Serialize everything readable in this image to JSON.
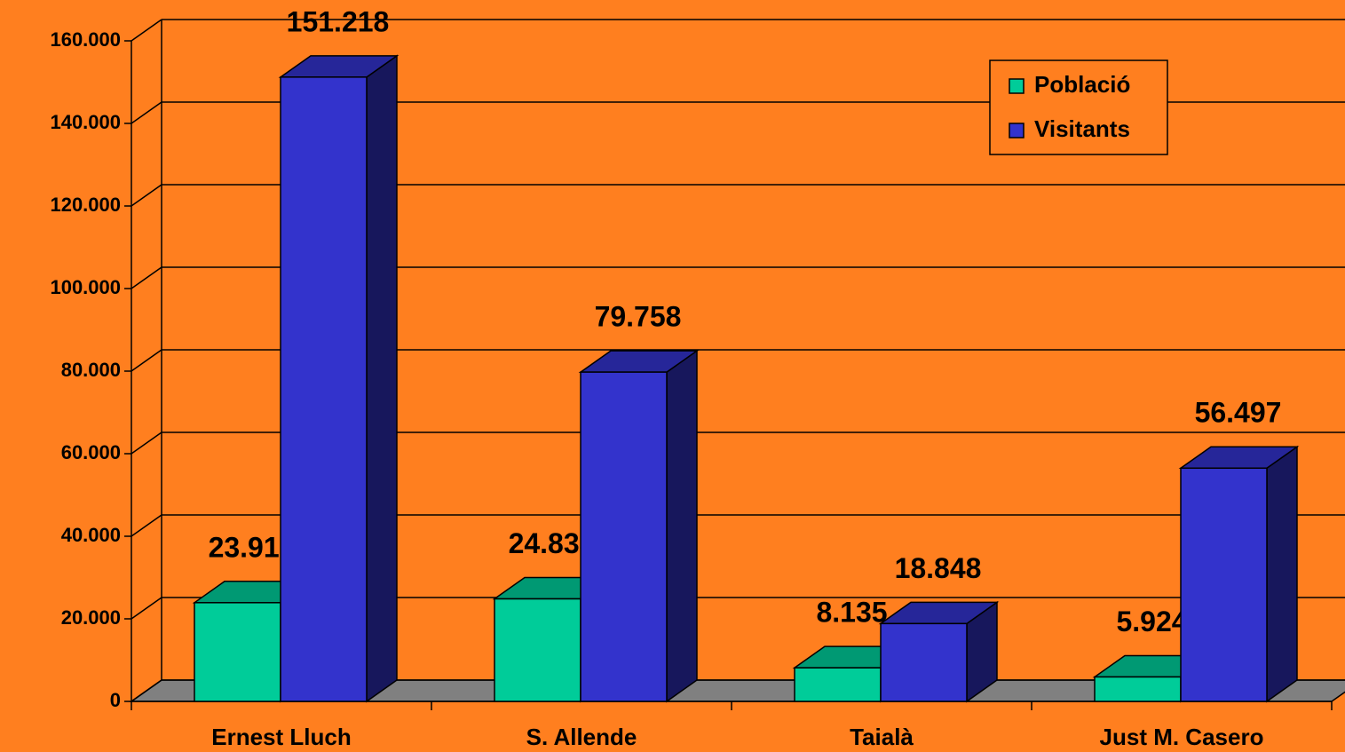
{
  "chart_data": {
    "type": "bar3d",
    "categories": [
      "Ernest Lluch",
      "S. Allende",
      "Taialà",
      "Just M. Casero"
    ],
    "series": [
      {
        "name": "Població",
        "color": "#00cc99",
        "values": [
          23912,
          24833,
          8135,
          5924
        ],
        "value_labels": [
          "23.912",
          "24.833",
          "8.135",
          "5.924"
        ]
      },
      {
        "name": "Visitants",
        "color": "#3333cc",
        "values": [
          151218,
          79758,
          18848,
          56497
        ],
        "value_labels": [
          "151.218",
          "79.758",
          "18.848",
          "56.497"
        ]
      }
    ],
    "ylim": [
      0,
      160000
    ],
    "yticks": [
      0,
      {
        "value": 20000,
        "label": "20.000"
      },
      {
        "value": 40000,
        "label": "40.000"
      },
      {
        "value": 60000,
        "label": "60.000"
      },
      {
        "value": 80000,
        "label": "80.000"
      },
      {
        "value": 100000,
        "label": "100.000"
      },
      {
        "value": 120000,
        "label": "120.000"
      },
      {
        "value": 140000,
        "label": "140.000"
      },
      {
        "value": 160000,
        "label": "160.000"
      }
    ],
    "grid": true,
    "legend": "top-right",
    "background": "#ff7f1f"
  }
}
